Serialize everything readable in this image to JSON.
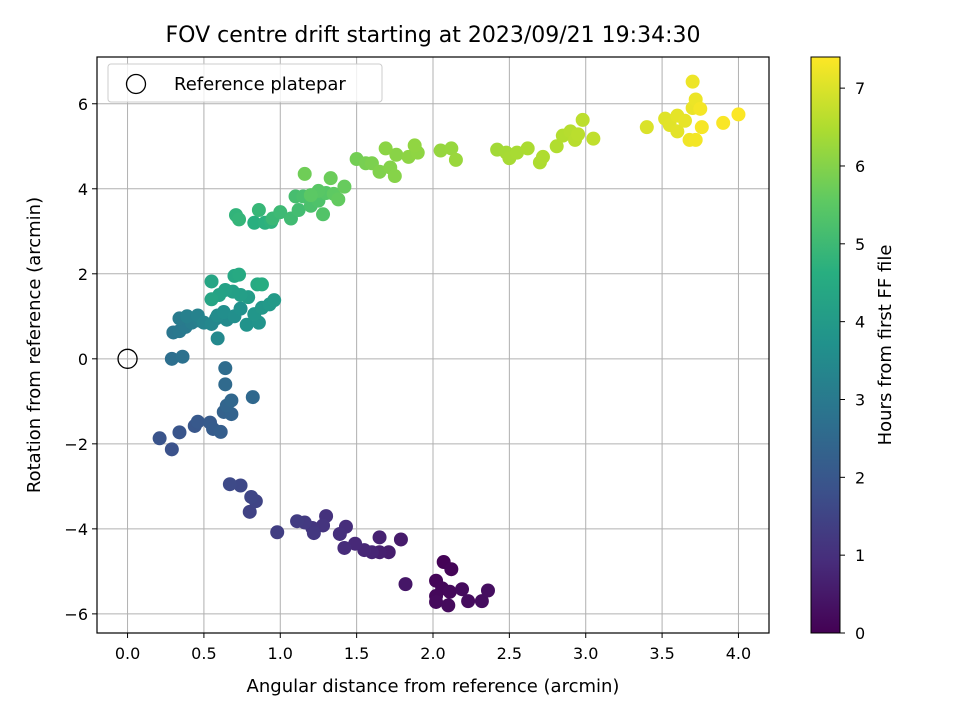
{
  "chart_data": {
    "type": "scatter",
    "title": "FOV centre drift starting at 2023/09/21 19:34:30",
    "xlabel": "Angular distance from reference (arcmin)",
    "ylabel": "Rotation from reference (arcmin)",
    "xlim": [
      -0.2,
      4.2
    ],
    "ylim": [
      -6.45,
      7.1
    ],
    "xticks": [
      0.0,
      0.5,
      1.0,
      1.5,
      2.0,
      2.5,
      3.0,
      3.5,
      4.0
    ],
    "xtick_labels": [
      "0.0",
      "0.5",
      "1.0",
      "1.5",
      "2.0",
      "2.5",
      "3.0",
      "3.5",
      "4.0"
    ],
    "yticks": [
      -6,
      -4,
      -2,
      0,
      2,
      4,
      6
    ],
    "ytick_labels": [
      "−6",
      "−4",
      "−2",
      "0",
      "2",
      "4",
      "6"
    ],
    "grid": true,
    "legend": {
      "entries": [
        "Reference platepar"
      ],
      "position": "top-left"
    },
    "reference_point": {
      "x": 0.0,
      "y": 0.0,
      "marker": "hollow-circle",
      "label": "Reference platepar"
    },
    "colorbar": {
      "label": "Hours from first FF file",
      "colormap": "viridis",
      "range": [
        0,
        7.4
      ],
      "ticks": [
        0,
        1,
        2,
        3,
        4,
        5,
        6,
        7
      ],
      "tick_labels": [
        "0",
        "1",
        "2",
        "3",
        "4",
        "5",
        "6",
        "7"
      ]
    },
    "points": [
      {
        "x": 2.07,
        "y": -4.78,
        "h": 0.05
      },
      {
        "x": 2.12,
        "y": -4.95,
        "h": 0.08
      },
      {
        "x": 2.02,
        "y": -5.22,
        "h": 0.1
      },
      {
        "x": 2.06,
        "y": -5.4,
        "h": 0.12
      },
      {
        "x": 2.02,
        "y": -5.58,
        "h": 0.14
      },
      {
        "x": 2.11,
        "y": -5.48,
        "h": 0.16
      },
      {
        "x": 2.02,
        "y": -5.72,
        "h": 0.18
      },
      {
        "x": 2.1,
        "y": -5.8,
        "h": 0.2
      },
      {
        "x": 2.19,
        "y": -5.42,
        "h": 0.22
      },
      {
        "x": 2.23,
        "y": -5.7,
        "h": 0.24
      },
      {
        "x": 2.32,
        "y": -5.7,
        "h": 0.26
      },
      {
        "x": 2.36,
        "y": -5.45,
        "h": 0.28
      },
      {
        "x": 1.82,
        "y": -5.3,
        "h": 0.45
      },
      {
        "x": 1.79,
        "y": -4.25,
        "h": 0.55
      },
      {
        "x": 1.71,
        "y": -4.55,
        "h": 0.6
      },
      {
        "x": 1.65,
        "y": -4.55,
        "h": 0.65
      },
      {
        "x": 1.65,
        "y": -4.2,
        "h": 0.7
      },
      {
        "x": 1.6,
        "y": -4.55,
        "h": 0.75
      },
      {
        "x": 1.55,
        "y": -4.5,
        "h": 0.8
      },
      {
        "x": 1.49,
        "y": -4.35,
        "h": 0.85
      },
      {
        "x": 1.42,
        "y": -4.45,
        "h": 0.9
      },
      {
        "x": 1.43,
        "y": -3.95,
        "h": 0.95
      },
      {
        "x": 1.39,
        "y": -4.12,
        "h": 1.0
      },
      {
        "x": 1.3,
        "y": -3.7,
        "h": 1.05
      },
      {
        "x": 1.28,
        "y": -3.92,
        "h": 1.1
      },
      {
        "x": 1.21,
        "y": -3.98,
        "h": 1.15
      },
      {
        "x": 1.22,
        "y": -4.1,
        "h": 1.2
      },
      {
        "x": 1.16,
        "y": -3.85,
        "h": 1.25
      },
      {
        "x": 1.11,
        "y": -3.82,
        "h": 1.3
      },
      {
        "x": 0.98,
        "y": -4.08,
        "h": 1.35
      },
      {
        "x": 0.8,
        "y": -3.6,
        "h": 1.45
      },
      {
        "x": 0.84,
        "y": -3.35,
        "h": 1.5
      },
      {
        "x": 0.81,
        "y": -3.25,
        "h": 1.55
      },
      {
        "x": 0.74,
        "y": -2.98,
        "h": 1.6
      },
      {
        "x": 0.67,
        "y": -2.95,
        "h": 1.65
      },
      {
        "x": 0.29,
        "y": -2.13,
        "h": 1.85
      },
      {
        "x": 0.21,
        "y": -1.87,
        "h": 1.9
      },
      {
        "x": 0.34,
        "y": -1.73,
        "h": 1.95
      },
      {
        "x": 0.44,
        "y": -1.58,
        "h": 2.0
      },
      {
        "x": 0.46,
        "y": -1.48,
        "h": 2.05
      },
      {
        "x": 0.54,
        "y": -1.5,
        "h": 2.1
      },
      {
        "x": 0.56,
        "y": -1.65,
        "h": 2.15
      },
      {
        "x": 0.61,
        "y": -1.72,
        "h": 2.2
      },
      {
        "x": 0.63,
        "y": -1.25,
        "h": 2.3
      },
      {
        "x": 0.68,
        "y": -1.3,
        "h": 2.35
      },
      {
        "x": 0.65,
        "y": -1.1,
        "h": 2.4
      },
      {
        "x": 0.68,
        "y": -0.98,
        "h": 2.45
      },
      {
        "x": 0.82,
        "y": -0.9,
        "h": 2.5
      },
      {
        "x": 0.64,
        "y": -0.6,
        "h": 2.55
      },
      {
        "x": 0.64,
        "y": -0.22,
        "h": 2.6
      },
      {
        "x": 0.29,
        "y": 0.0,
        "h": 2.7
      },
      {
        "x": 0.36,
        "y": 0.05,
        "h": 2.75
      },
      {
        "x": 0.3,
        "y": 0.62,
        "h": 2.9
      },
      {
        "x": 0.34,
        "y": 0.65,
        "h": 2.95
      },
      {
        "x": 0.38,
        "y": 0.75,
        "h": 3.0
      },
      {
        "x": 0.34,
        "y": 0.95,
        "h": 3.05
      },
      {
        "x": 0.42,
        "y": 0.85,
        "h": 3.1
      },
      {
        "x": 0.47,
        "y": 0.9,
        "h": 3.15
      },
      {
        "x": 0.39,
        "y": 1.0,
        "h": 3.2
      },
      {
        "x": 0.46,
        "y": 1.02,
        "h": 3.25
      },
      {
        "x": 0.5,
        "y": 0.85,
        "h": 3.3
      },
      {
        "x": 0.58,
        "y": 0.95,
        "h": 3.35
      },
      {
        "x": 0.55,
        "y": 0.82,
        "h": 3.4
      },
      {
        "x": 0.59,
        "y": 0.48,
        "h": 3.45
      },
      {
        "x": 0.65,
        "y": 0.92,
        "h": 3.5
      },
      {
        "x": 0.59,
        "y": 1.02,
        "h": 3.55
      },
      {
        "x": 0.63,
        "y": 1.1,
        "h": 3.6
      },
      {
        "x": 0.7,
        "y": 1.0,
        "h": 3.65
      },
      {
        "x": 0.74,
        "y": 1.18,
        "h": 3.7
      },
      {
        "x": 0.78,
        "y": 0.8,
        "h": 3.75
      },
      {
        "x": 0.86,
        "y": 0.85,
        "h": 3.8
      },
      {
        "x": 0.83,
        "y": 1.05,
        "h": 3.85
      },
      {
        "x": 0.88,
        "y": 1.2,
        "h": 3.9
      },
      {
        "x": 0.93,
        "y": 1.28,
        "h": 3.95
      },
      {
        "x": 0.96,
        "y": 1.38,
        "h": 4.0
      },
      {
        "x": 0.79,
        "y": 1.45,
        "h": 4.05
      },
      {
        "x": 0.74,
        "y": 1.5,
        "h": 4.1
      },
      {
        "x": 0.69,
        "y": 1.58,
        "h": 4.15
      },
      {
        "x": 0.64,
        "y": 1.62,
        "h": 4.2
      },
      {
        "x": 0.6,
        "y": 1.5,
        "h": 4.25
      },
      {
        "x": 0.55,
        "y": 1.4,
        "h": 4.3
      },
      {
        "x": 0.55,
        "y": 1.82,
        "h": 4.35
      },
      {
        "x": 0.7,
        "y": 1.95,
        "h": 4.4
      },
      {
        "x": 0.73,
        "y": 1.98,
        "h": 4.45
      },
      {
        "x": 0.85,
        "y": 1.75,
        "h": 4.5
      },
      {
        "x": 0.88,
        "y": 1.75,
        "h": 4.55
      },
      {
        "x": 0.83,
        "y": 3.2,
        "h": 4.65
      },
      {
        "x": 0.9,
        "y": 3.2,
        "h": 4.7
      },
      {
        "x": 0.94,
        "y": 3.22,
        "h": 4.75
      },
      {
        "x": 0.71,
        "y": 3.38,
        "h": 4.8
      },
      {
        "x": 0.73,
        "y": 3.28,
        "h": 4.85
      },
      {
        "x": 0.86,
        "y": 3.5,
        "h": 4.9
      },
      {
        "x": 0.95,
        "y": 3.3,
        "h": 4.95
      },
      {
        "x": 1.0,
        "y": 3.45,
        "h": 5.0
      },
      {
        "x": 1.07,
        "y": 3.3,
        "h": 5.05
      },
      {
        "x": 1.12,
        "y": 3.5,
        "h": 5.1
      },
      {
        "x": 1.1,
        "y": 3.82,
        "h": 5.15
      },
      {
        "x": 1.15,
        "y": 3.82,
        "h": 5.2
      },
      {
        "x": 1.2,
        "y": 3.6,
        "h": 5.25
      },
      {
        "x": 1.25,
        "y": 3.72,
        "h": 5.3
      },
      {
        "x": 1.28,
        "y": 3.4,
        "h": 5.35
      },
      {
        "x": 1.3,
        "y": 3.9,
        "h": 5.4
      },
      {
        "x": 1.25,
        "y": 3.95,
        "h": 5.45
      },
      {
        "x": 1.2,
        "y": 3.85,
        "h": 5.5
      },
      {
        "x": 1.35,
        "y": 3.88,
        "h": 5.55
      },
      {
        "x": 1.38,
        "y": 3.75,
        "h": 5.6
      },
      {
        "x": 1.42,
        "y": 4.05,
        "h": 5.65
      },
      {
        "x": 1.33,
        "y": 4.25,
        "h": 5.7
      },
      {
        "x": 1.16,
        "y": 4.35,
        "h": 5.75
      },
      {
        "x": 1.5,
        "y": 4.7,
        "h": 5.8
      },
      {
        "x": 1.56,
        "y": 4.6,
        "h": 5.85
      },
      {
        "x": 1.6,
        "y": 4.6,
        "h": 5.9
      },
      {
        "x": 1.65,
        "y": 4.4,
        "h": 5.95
      },
      {
        "x": 1.72,
        "y": 4.5,
        "h": 6.0
      },
      {
        "x": 1.75,
        "y": 4.3,
        "h": 6.02
      },
      {
        "x": 1.76,
        "y": 4.8,
        "h": 6.05
      },
      {
        "x": 1.69,
        "y": 4.95,
        "h": 6.08
      },
      {
        "x": 1.84,
        "y": 4.75,
        "h": 6.1
      },
      {
        "x": 1.9,
        "y": 4.85,
        "h": 6.12
      },
      {
        "x": 1.88,
        "y": 5.02,
        "h": 6.15
      },
      {
        "x": 2.05,
        "y": 4.9,
        "h": 6.2
      },
      {
        "x": 2.12,
        "y": 4.95,
        "h": 6.22
      },
      {
        "x": 2.15,
        "y": 4.68,
        "h": 6.25
      },
      {
        "x": 2.42,
        "y": 4.92,
        "h": 6.35
      },
      {
        "x": 2.48,
        "y": 4.85,
        "h": 6.38
      },
      {
        "x": 2.5,
        "y": 4.72,
        "h": 6.4
      },
      {
        "x": 2.55,
        "y": 4.85,
        "h": 6.42
      },
      {
        "x": 2.62,
        "y": 4.95,
        "h": 6.45
      },
      {
        "x": 2.7,
        "y": 4.62,
        "h": 6.48
      },
      {
        "x": 2.72,
        "y": 4.75,
        "h": 6.5
      },
      {
        "x": 2.81,
        "y": 5.0,
        "h": 6.52
      },
      {
        "x": 2.85,
        "y": 5.25,
        "h": 6.55
      },
      {
        "x": 2.9,
        "y": 5.35,
        "h": 6.58
      },
      {
        "x": 2.93,
        "y": 5.15,
        "h": 6.6
      },
      {
        "x": 2.95,
        "y": 5.28,
        "h": 6.62
      },
      {
        "x": 2.98,
        "y": 5.62,
        "h": 6.65
      },
      {
        "x": 3.05,
        "y": 5.18,
        "h": 6.7
      },
      {
        "x": 3.4,
        "y": 5.45,
        "h": 7.0
      },
      {
        "x": 3.52,
        "y": 5.65,
        "h": 7.05
      },
      {
        "x": 3.55,
        "y": 5.5,
        "h": 7.08
      },
      {
        "x": 3.6,
        "y": 5.35,
        "h": 7.1
      },
      {
        "x": 3.6,
        "y": 5.72,
        "h": 7.12
      },
      {
        "x": 3.65,
        "y": 5.6,
        "h": 7.15
      },
      {
        "x": 3.7,
        "y": 5.9,
        "h": 7.18
      },
      {
        "x": 3.72,
        "y": 6.1,
        "h": 7.2
      },
      {
        "x": 3.7,
        "y": 6.52,
        "h": 7.22
      },
      {
        "x": 3.68,
        "y": 5.15,
        "h": 7.25
      },
      {
        "x": 3.72,
        "y": 5.15,
        "h": 7.28
      },
      {
        "x": 3.75,
        "y": 5.88,
        "h": 7.3
      },
      {
        "x": 3.76,
        "y": 5.45,
        "h": 7.32
      },
      {
        "x": 3.9,
        "y": 5.55,
        "h": 7.35
      },
      {
        "x": 4.0,
        "y": 5.75,
        "h": 7.38
      }
    ]
  }
}
